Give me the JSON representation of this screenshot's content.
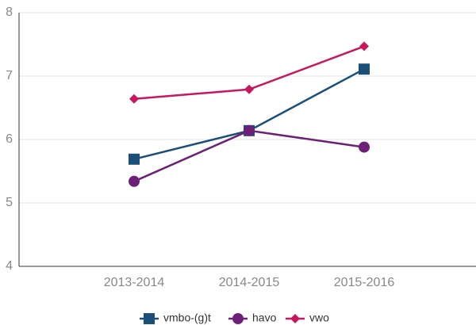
{
  "chart_data": {
    "type": "line",
    "categories": [
      "2013-2014",
      "2014-2015",
      "2015-2016"
    ],
    "series": [
      {
        "name": "vmbo-(g)t",
        "color": "#1a4f7a",
        "marker": "square",
        "values": [
          5.69,
          6.14,
          7.11
        ]
      },
      {
        "name": "havo",
        "color": "#6d2077",
        "marker": "circle",
        "values": [
          5.34,
          6.14,
          5.88
        ]
      },
      {
        "name": "vwo",
        "color": "#c8175d",
        "marker": "diamond",
        "values": [
          6.64,
          6.79,
          7.47
        ]
      }
    ],
    "ylim": [
      4,
      8
    ],
    "yticks": [
      4,
      5,
      6,
      7,
      8
    ],
    "grid": true,
    "legend": "bottom"
  }
}
